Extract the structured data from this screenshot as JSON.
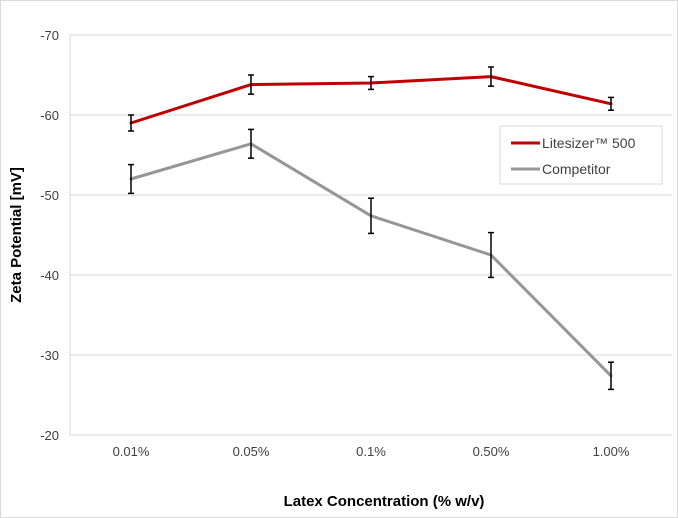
{
  "chart_data": {
    "type": "line",
    "title": "",
    "xlabel": "Latex Concentration  (% w/v)",
    "ylabel": "Zeta Potential [mV]",
    "categories": [
      "0.01%",
      "0.05%",
      "0.1%",
      "0.50%",
      "1.00%"
    ],
    "ylim": [
      -20,
      -70
    ],
    "y_ticks": [
      -70,
      -60,
      -50,
      -40,
      -30,
      -20
    ],
    "y_tick_labels": [
      "-70",
      "-60",
      "-50",
      "-40",
      "-30",
      "-20"
    ],
    "grid": true,
    "legend_position": "right",
    "series": [
      {
        "name": "Litesizer™ 500",
        "color": "#c00000",
        "values": [
          -59.0,
          -63.8,
          -64.0,
          -64.8,
          -61.4
        ],
        "errors": [
          1.0,
          1.2,
          0.8,
          1.2,
          0.8
        ]
      },
      {
        "name": "Competitor",
        "color": "#969696",
        "values": [
          -52.0,
          -56.4,
          -47.4,
          -42.5,
          -27.4
        ],
        "errors": [
          1.8,
          1.8,
          2.2,
          2.8,
          1.7
        ]
      }
    ]
  }
}
